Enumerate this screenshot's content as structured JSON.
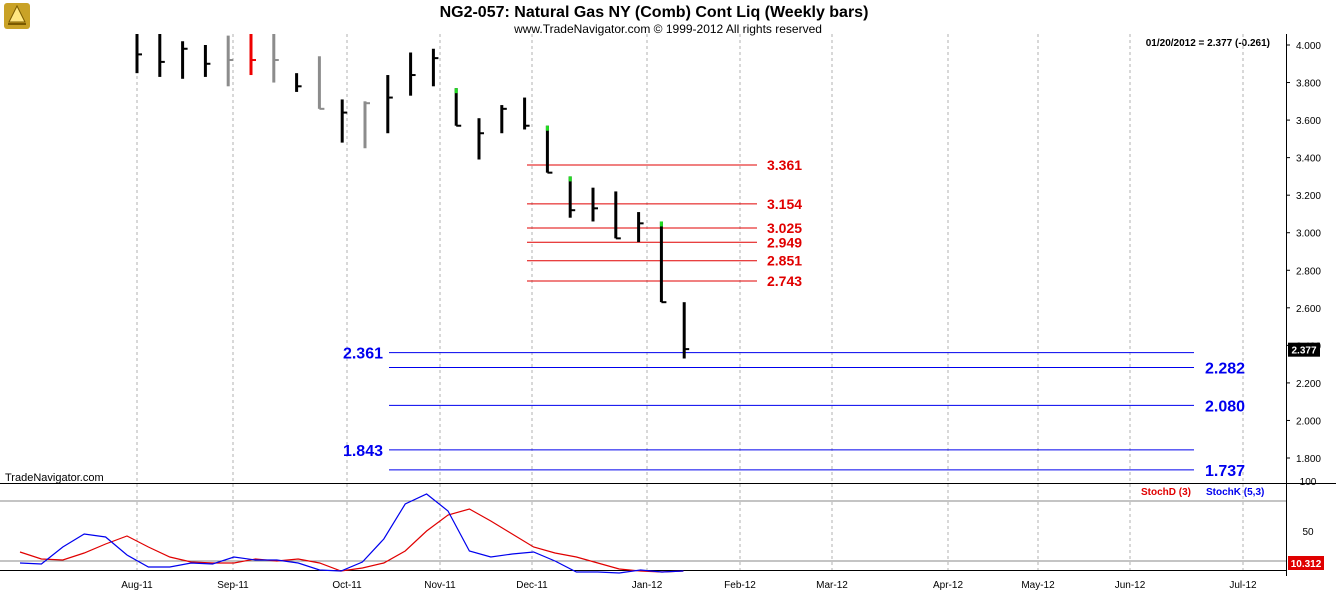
{
  "header": {
    "title": "NG2-057:  Natural Gas NY (Comb) Cont Liq  (Weekly bars)",
    "subtitle": "www.TradeNavigator.com © 1999-2012 All rights reserved",
    "quote": "01/20/2012 = 2.377 (-0.261)",
    "watermark": "TradeNavigator.com"
  },
  "colors": {
    "bar": "#000000",
    "bar_faded": "#8c8c8c",
    "bar_highlight": "#ee0000",
    "up_tick": "#22dd22",
    "red_level": "#e00000",
    "blue_level": "#0000ee",
    "stoch_d": "#e00000",
    "stoch_k": "#0000ee",
    "grid": "#b0b0b0"
  },
  "chart_data": [
    {
      "type": "bar",
      "series_kind": "ohlc",
      "ylim": [
        1.6,
        4.05
      ],
      "y_ticks": [
        "4.000",
        "3.800",
        "3.600",
        "3.400",
        "3.200",
        "3.000",
        "2.800",
        "2.600",
        "2.400",
        "2.200",
        "2.000",
        "1.800"
      ],
      "x_ticks": [
        "Aug-11",
        "Sep-11",
        "Oct-11",
        "Nov-11",
        "Dec-11",
        "Jan-12",
        "Feb-12",
        "Mar-12",
        "Apr-12",
        "May-12",
        "Jun-12",
        "Jul-12"
      ],
      "last_value_tag": "2.377",
      "bars": [
        {
          "x": 0,
          "h": 4.1,
          "l": 3.85,
          "c": 3.95,
          "style": "normal"
        },
        {
          "x": 1,
          "h": 4.08,
          "l": 3.83,
          "c": 3.91,
          "style": "normal"
        },
        {
          "x": 2,
          "h": 4.02,
          "l": 3.82,
          "c": 3.98,
          "style": "normal"
        },
        {
          "x": 3,
          "h": 4.0,
          "l": 3.83,
          "c": 3.9,
          "style": "normal"
        },
        {
          "x": 4,
          "h": 4.05,
          "l": 3.78,
          "c": 3.92,
          "style": "faded"
        },
        {
          "x": 5,
          "h": 4.06,
          "l": 3.84,
          "c": 3.92,
          "style": "highlight"
        },
        {
          "x": 6,
          "h": 4.12,
          "l": 3.8,
          "c": 3.92,
          "style": "faded"
        },
        {
          "x": 7,
          "h": 3.85,
          "l": 3.75,
          "c": 3.78,
          "style": "normal"
        },
        {
          "x": 8,
          "h": 3.94,
          "l": 3.66,
          "c": 3.66,
          "style": "faded"
        },
        {
          "x": 9,
          "h": 3.71,
          "l": 3.48,
          "c": 3.64,
          "style": "normal"
        },
        {
          "x": 10,
          "h": 3.7,
          "l": 3.45,
          "c": 3.69,
          "style": "faded"
        },
        {
          "x": 11,
          "h": 3.84,
          "l": 3.53,
          "c": 3.72,
          "style": "normal"
        },
        {
          "x": 12,
          "h": 3.96,
          "l": 3.73,
          "c": 3.84,
          "style": "normal"
        },
        {
          "x": 13,
          "h": 3.98,
          "l": 3.78,
          "c": 3.93,
          "style": "normal"
        },
        {
          "x": 14,
          "h": 3.77,
          "l": 3.57,
          "c": 3.57,
          "style": "normal",
          "tick": true
        },
        {
          "x": 15,
          "h": 3.61,
          "l": 3.39,
          "c": 3.53,
          "style": "normal"
        },
        {
          "x": 16,
          "h": 3.68,
          "l": 3.53,
          "c": 3.66,
          "style": "normal"
        },
        {
          "x": 17,
          "h": 3.72,
          "l": 3.55,
          "c": 3.57,
          "style": "normal"
        },
        {
          "x": 18,
          "h": 3.57,
          "l": 3.32,
          "c": 3.32,
          "style": "normal",
          "tick": true
        },
        {
          "x": 19,
          "h": 3.3,
          "l": 3.08,
          "c": 3.12,
          "style": "normal",
          "tick": true
        },
        {
          "x": 20,
          "h": 3.24,
          "l": 3.06,
          "c": 3.13,
          "style": "normal"
        },
        {
          "x": 21,
          "h": 3.22,
          "l": 2.97,
          "c": 2.97,
          "style": "normal"
        },
        {
          "x": 22,
          "h": 3.11,
          "l": 2.95,
          "c": 3.05,
          "style": "normal"
        },
        {
          "x": 23,
          "h": 3.06,
          "l": 2.63,
          "c": 2.63,
          "style": "normal",
          "tick": true
        },
        {
          "x": 24,
          "h": 2.63,
          "l": 2.33,
          "c": 2.38,
          "style": "normal"
        }
      ],
      "red_levels": [
        "3.361",
        "3.154",
        "3.025",
        "2.949",
        "2.851",
        "2.743"
      ],
      "blue_levels": [
        {
          "value": "2.361",
          "label_side": "left"
        },
        {
          "value": "2.282",
          "label_side": "right"
        },
        {
          "value": "2.080",
          "label_side": "right"
        },
        {
          "value": "1.843",
          "label_side": "left"
        },
        {
          "value": "1.737",
          "label_side": "right"
        }
      ]
    },
    {
      "type": "line",
      "ylim": [
        0,
        100
      ],
      "y_ticks": [
        "100",
        "50"
      ],
      "legend": [
        "StochD (3)",
        "StochK (5,3)"
      ],
      "last_value_tag": "10.312",
      "series": [
        {
          "name": "StochD (3)",
          "values": [
            29,
            22,
            21,
            28,
            37,
            45,
            34,
            24,
            19,
            18,
            18,
            22,
            20,
            22,
            18,
            10,
            13,
            18,
            30,
            50,
            66,
            72,
            60,
            47,
            34,
            28,
            24,
            18,
            12,
            10,
            9,
            10
          ]
        },
        {
          "name": "StochK (5,3)",
          "values": [
            18,
            17,
            34,
            47,
            44,
            26,
            14,
            14,
            18,
            17,
            24,
            21,
            21,
            18,
            11,
            10,
            19,
            42,
            77,
            87,
            70,
            30,
            24,
            27,
            29,
            20,
            9,
            9,
            8,
            11,
            9,
            10
          ]
        }
      ]
    }
  ]
}
